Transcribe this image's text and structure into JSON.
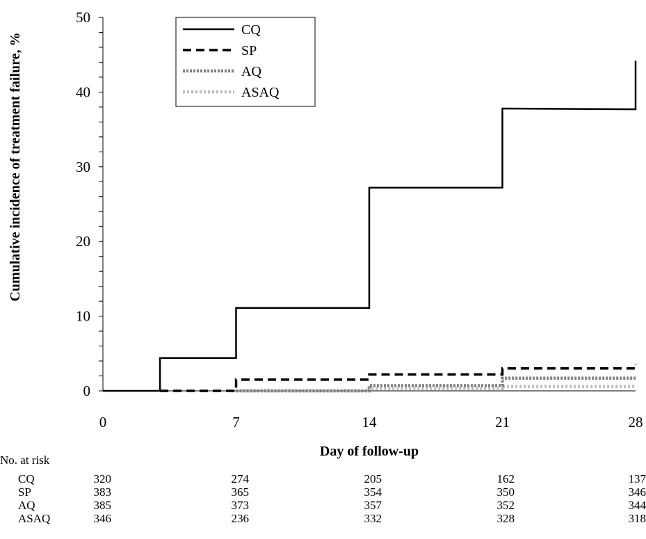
{
  "chart_data": {
    "type": "line",
    "step": true,
    "xlabel": "Day of follow-up",
    "ylabel": "Cumulative incidence of treatment failure, %",
    "xlim": [
      0,
      28
    ],
    "ylim": [
      0,
      50
    ],
    "xticks": [
      0,
      7,
      14,
      21,
      28
    ],
    "yticks": [
      0,
      10,
      20,
      30,
      40,
      50
    ],
    "grid": false,
    "legend_position": "top-left",
    "series": [
      {
        "name": "CQ",
        "style": "solid",
        "color": "#000000",
        "points": [
          [
            0,
            0
          ],
          [
            3,
            0
          ],
          [
            3,
            4.4
          ],
          [
            7,
            4.4
          ],
          [
            7,
            11.1
          ],
          [
            14,
            11.1
          ],
          [
            14,
            27.2
          ],
          [
            21,
            27.2
          ],
          [
            21,
            37.8
          ],
          [
            28,
            37.7
          ],
          [
            28,
            44.2
          ]
        ]
      },
      {
        "name": "SP",
        "style": "dashed",
        "color": "#000000",
        "points": [
          [
            3,
            0
          ],
          [
            7,
            0
          ],
          [
            7,
            1.5
          ],
          [
            14,
            1.5
          ],
          [
            14,
            2.2
          ],
          [
            21,
            2.2
          ],
          [
            21,
            3.0
          ],
          [
            28,
            3.0
          ],
          [
            28,
            3.6
          ]
        ]
      },
      {
        "name": "AQ",
        "style": "dotted-dark",
        "color": "#808080",
        "points": [
          [
            7,
            0
          ],
          [
            14,
            0
          ],
          [
            14,
            0.7
          ],
          [
            21,
            0.7
          ],
          [
            21,
            1.7
          ],
          [
            28,
            1.7
          ]
        ]
      },
      {
        "name": "ASAQ",
        "style": "dotted-light",
        "color": "#bdbdbd",
        "points": [
          [
            7,
            0
          ],
          [
            14,
            0
          ],
          [
            14,
            0.3
          ],
          [
            21,
            0.3
          ],
          [
            21,
            0.6
          ],
          [
            28,
            0.6
          ]
        ]
      }
    ],
    "risk_table": {
      "title": "No. at risk",
      "days": [
        0,
        7,
        14,
        21,
        28
      ],
      "rows": [
        {
          "label": "CQ",
          "values": [
            "320",
            "274",
            "205",
            "162",
            "137"
          ]
        },
        {
          "label": "SP",
          "values": [
            "383",
            "365",
            "354",
            "350",
            "346"
          ]
        },
        {
          "label": "AQ",
          "values": [
            "385",
            "373",
            "357",
            "352",
            "344"
          ]
        },
        {
          "label": "ASAQ",
          "values": [
            "346",
            "236",
            "332",
            "328",
            "318"
          ]
        }
      ]
    }
  }
}
